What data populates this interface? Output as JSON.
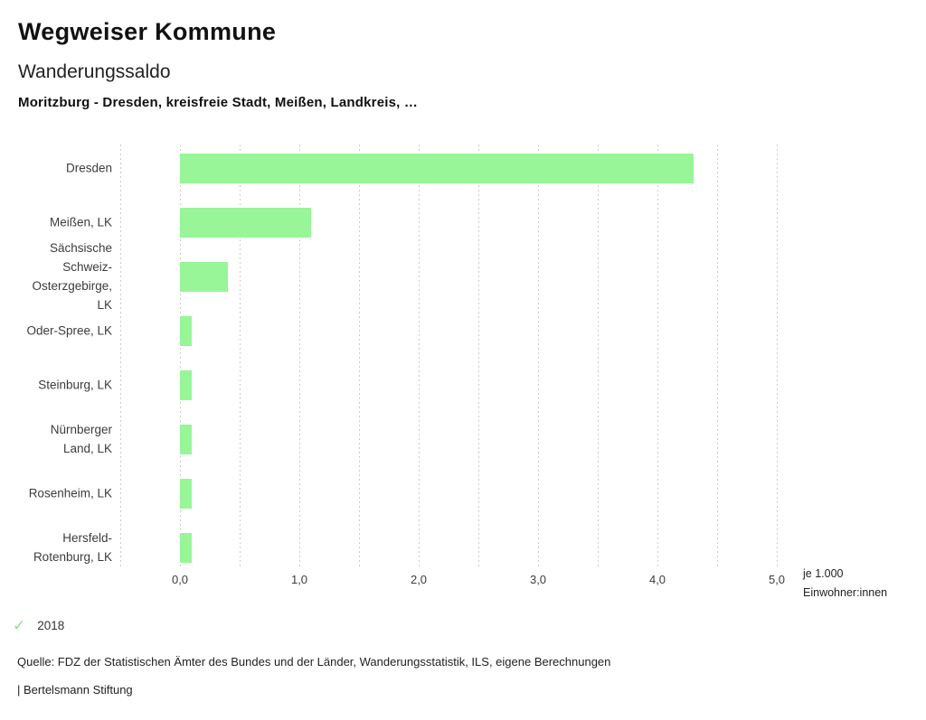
{
  "header": {
    "app_title": "Wegweiser Kommune",
    "chart_title": "Wanderungssaldo",
    "subtitle": "Moritzburg - Dresden, kreisfreie Stadt, Meißen, Landkreis, …"
  },
  "chart_data": {
    "type": "bar",
    "orientation": "horizontal",
    "title": "Wanderungssaldo",
    "categories": [
      "Dresden",
      "Meißen, LK",
      "Sächsische Schweiz-Osterzgebirge, LK",
      "Oder-Spree, LK",
      "Steinburg, LK",
      "Nürnberger Land, LK",
      "Rosenheim, LK",
      "Hersfeld-Rotenburg, LK"
    ],
    "series": [
      {
        "name": "2018",
        "values": [
          4.3,
          1.1,
          0.4,
          0.1,
          0.1,
          0.1,
          0.1,
          0.1
        ]
      }
    ],
    "xlabel": "je 1.000 Einwohner:innen",
    "x_ticks": [
      "0,0",
      "1,0",
      "2,0",
      "3,0",
      "4,0",
      "5,0"
    ],
    "x_tick_values": [
      0,
      1,
      2,
      3,
      4,
      5
    ],
    "xlim": [
      -0.5,
      5.0
    ],
    "grid": true,
    "grid_step": 0.5,
    "legend_position": "bottom-left",
    "bar_color": "#98f598"
  },
  "axis_unit": {
    "line1": "je 1.000",
    "line2": "Einwohner:innen"
  },
  "legend": {
    "check_glyph": "✓",
    "check_color": "#8fe08f",
    "label": "2018"
  },
  "footer": {
    "source": "Quelle: FDZ der Statistischen Ämter des Bundes und der Länder, Wanderungsstatistik, ILS, eigene Berechnungen",
    "attribution": "| Bertelsmann Stiftung"
  }
}
